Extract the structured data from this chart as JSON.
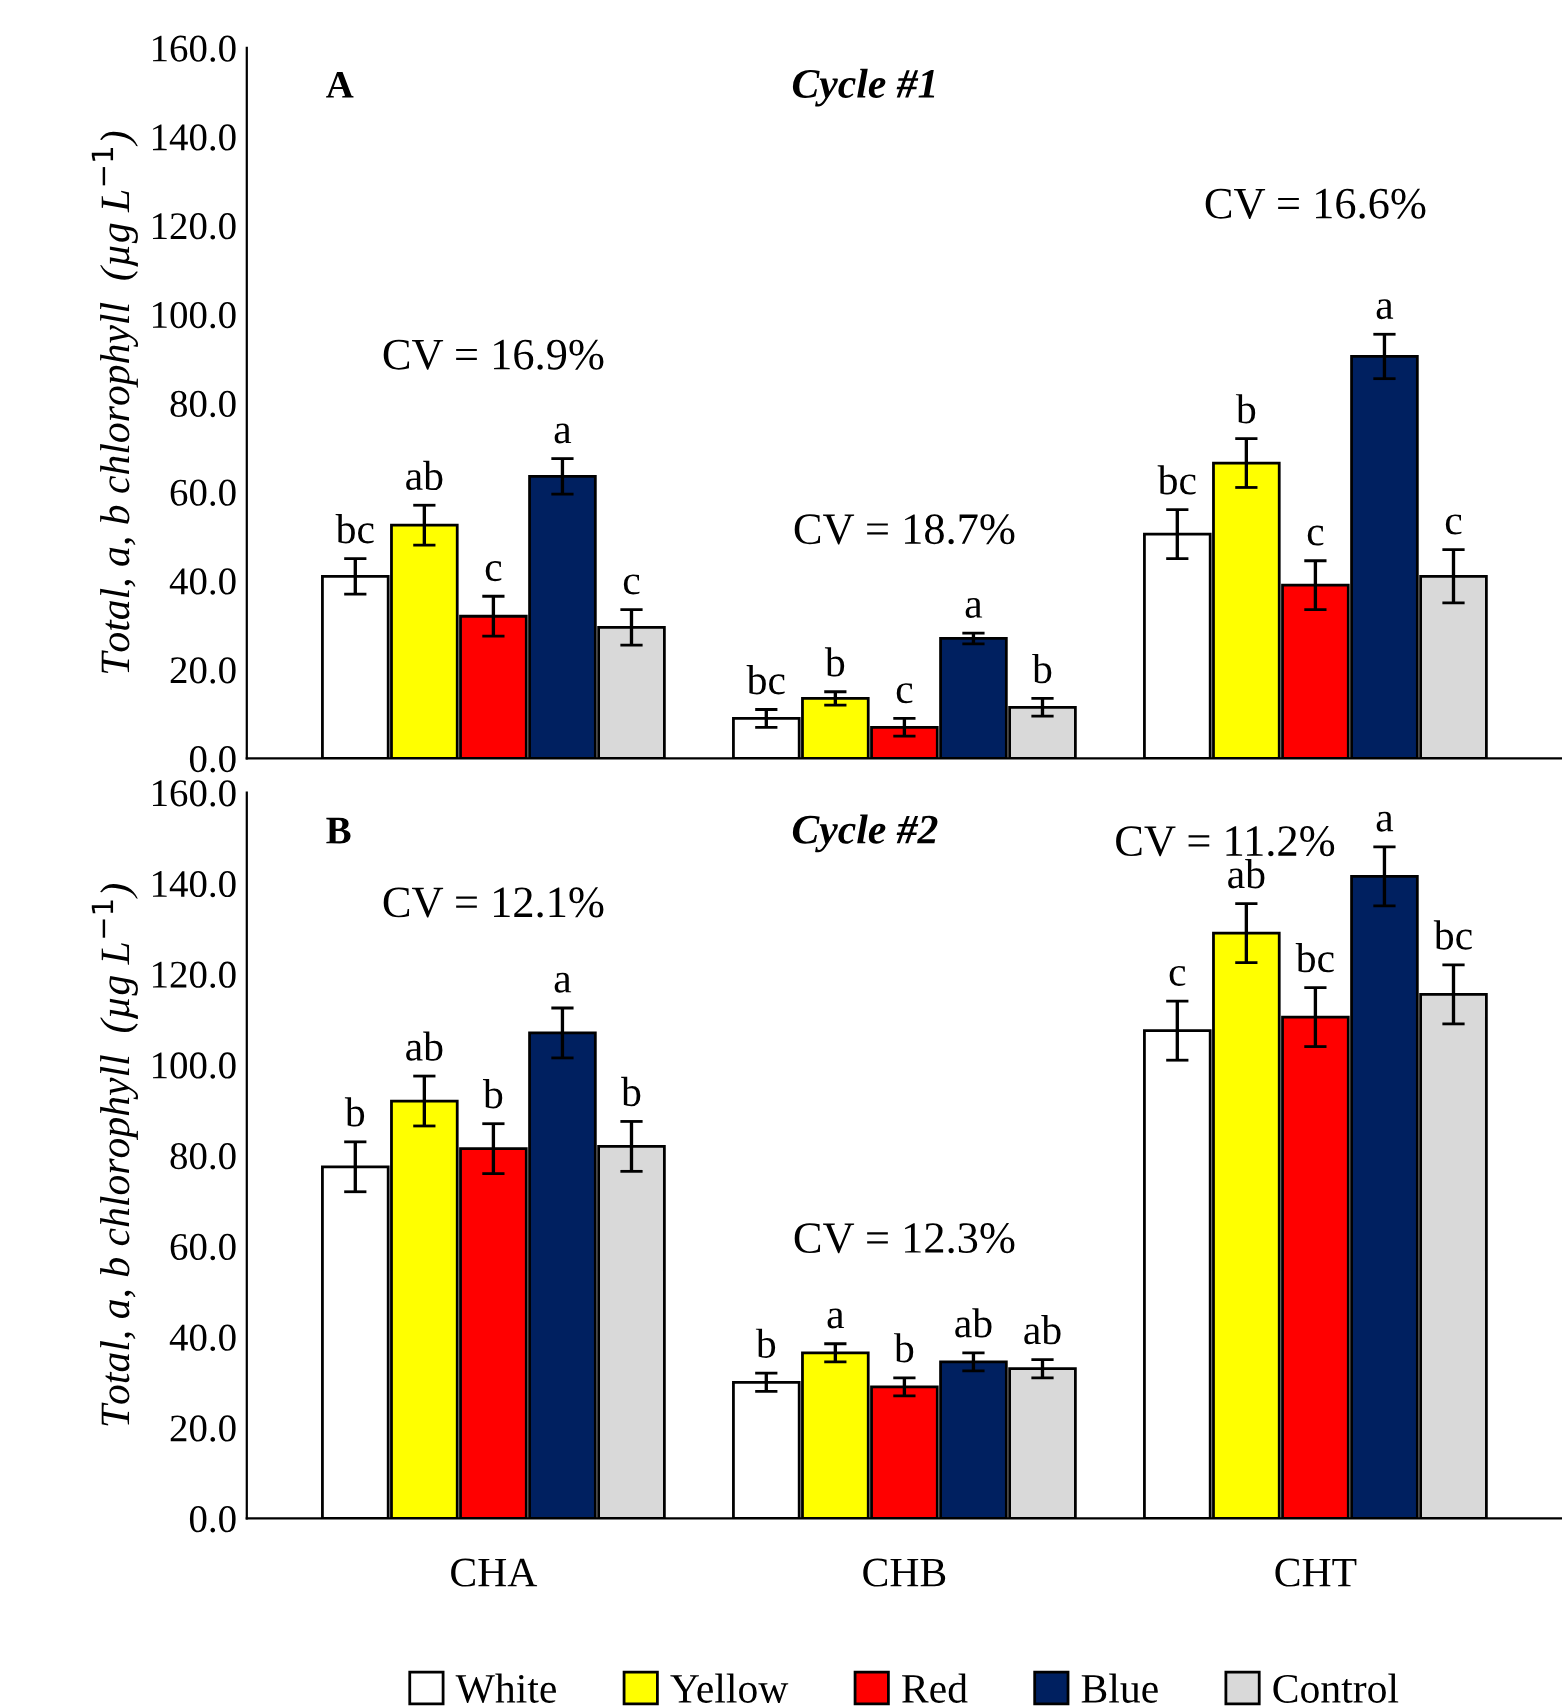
{
  "chart_data": [
    {
      "type": "bar",
      "title": "Cycle #1",
      "ylabel": "Total, a, b chlorophyll  (µg L$^{−1}$)",
      "categories": [
        null,
        null,
        null
      ],
      "tick_labels": "y",
      "ylim": [
        0,
        160
      ],
      "yticks": [
        {
          "value": 0,
          "label": "0.0"
        },
        {
          "value": 20,
          "label": "20.0"
        },
        {
          "value": 40,
          "label": "40.0"
        },
        {
          "value": 60,
          "label": "60.0"
        },
        {
          "value": 80,
          "label": "80.0"
        },
        {
          "value": 100,
          "label": "100.0"
        },
        {
          "value": 120,
          "label": "120.0"
        },
        {
          "value": 140,
          "label": "140.0"
        },
        {
          "value": 160,
          "label": "160.0"
        }
      ],
      "grid": false,
      "legend": false,
      "annotations": [
        "A",
        "CV = 16.9%",
        "CV = 18.7%",
        "CV = 16.6%"
      ],
      "series": [
        {
          "color": "#ffffff",
          "values": [
            41,
            9,
            50.5
          ],
          "errors": [
            4,
            2,
            5.5
          ],
          "value_labels": [
            "bc",
            "bc",
            "bc"
          ]
        },
        {
          "color": "#ffff00",
          "values": [
            52.5,
            13.5,
            66.5
          ],
          "errors": [
            4.5,
            1.5,
            5.5
          ],
          "value_labels": [
            "ab",
            "b",
            "b"
          ]
        },
        {
          "color": "#ff0000",
          "values": [
            32,
            7,
            39
          ],
          "errors": [
            4.5,
            2,
            5.5
          ],
          "value_labels": [
            "c",
            "c",
            "c"
          ]
        },
        {
          "color": "#002060",
          "values": [
            63.5,
            27,
            90.5
          ],
          "errors": [
            4,
            1.2,
            5
          ],
          "value_labels": [
            "a",
            "a",
            "a"
          ]
        },
        {
          "color": "#d9d9d9",
          "values": [
            29.5,
            11.5,
            41
          ],
          "errors": [
            4,
            2,
            6
          ],
          "value_labels": [
            "c",
            "b",
            "c"
          ]
        }
      ]
    },
    {
      "type": "bar",
      "title": "Cycle #2",
      "ylabel": "Total, a, b chlorophyll  (µg L$^{−1}$)",
      "categories": [
        "CHA",
        "CHB",
        "CHT"
      ],
      "ylim": [
        0,
        160
      ],
      "yticks": [
        {
          "value": 0,
          "label": "0.0"
        },
        {
          "value": 20,
          "label": "20.0"
        },
        {
          "value": 40,
          "label": "40.0"
        },
        {
          "value": 60,
          "label": "60.0"
        },
        {
          "value": 80,
          "label": "80.0"
        },
        {
          "value": 100,
          "label": "100.0"
        },
        {
          "value": 120,
          "label": "120.0"
        },
        {
          "value": 140,
          "label": "140.0"
        },
        {
          "value": 160,
          "label": "160.0"
        }
      ],
      "grid": false,
      "legend": "bottom",
      "annotations": [
        "B",
        "CV = 12.1%",
        "CV = 12.3%",
        "CV = 11.2%"
      ],
      "series": [
        {
          "name": "White",
          "color": "#ffffff",
          "values": [
            77.5,
            30,
            107.5
          ],
          "errors": [
            5.5,
            2,
            6.5
          ],
          "value_labels": [
            "b",
            "b",
            "c"
          ]
        },
        {
          "name": "Yellow",
          "color": "#ffff00",
          "values": [
            92,
            36.5,
            129
          ],
          "errors": [
            5.5,
            2,
            6.5
          ],
          "value_labels": [
            "ab",
            "a",
            "ab"
          ]
        },
        {
          "name": "Red",
          "color": "#ff0000",
          "values": [
            81.5,
            29,
            110.5
          ],
          "errors": [
            5.5,
            2,
            6.5
          ],
          "value_labels": [
            "b",
            "b",
            "bc"
          ]
        },
        {
          "name": "Blue",
          "color": "#002060",
          "values": [
            107,
            34.5,
            141.5
          ],
          "errors": [
            5.5,
            2,
            6.5
          ],
          "value_labels": [
            "a",
            "ab",
            "a"
          ]
        },
        {
          "name": "Control",
          "color": "#d9d9d9",
          "values": [
            82,
            33,
            115.5
          ],
          "errors": [
            5.5,
            2,
            6.5
          ],
          "value_labels": [
            "b",
            "ab",
            "bc"
          ]
        }
      ]
    }
  ]
}
